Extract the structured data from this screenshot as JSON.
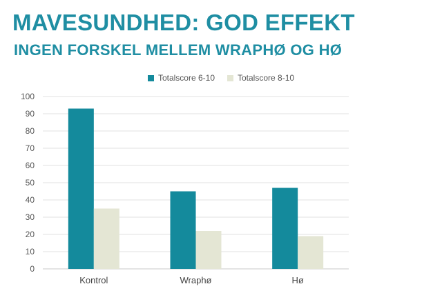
{
  "header": {
    "title": "MAVESUNDHED: GOD EFFEKT",
    "subtitle": "INGEN FORSKEL MELLEM WRAPHØ OG HØ"
  },
  "chart_data": {
    "type": "bar",
    "title": "",
    "xlabel": "",
    "ylabel": "",
    "categories": [
      "Kontrol",
      "Wraphø",
      "Hø"
    ],
    "series": [
      {
        "name": "Totalscore 6-10",
        "color": "#148a9c",
        "values": [
          93,
          45,
          47
        ]
      },
      {
        "name": "Totalscore 8-10",
        "color": "#e4e6d4",
        "values": [
          35,
          22,
          19
        ]
      }
    ],
    "ylim": [
      0,
      100
    ],
    "yticks": [
      "0",
      "10",
      "20",
      "30",
      "40",
      "50",
      "60",
      "70",
      "80",
      "90",
      "100"
    ],
    "grid": true,
    "legend_position": "top"
  }
}
